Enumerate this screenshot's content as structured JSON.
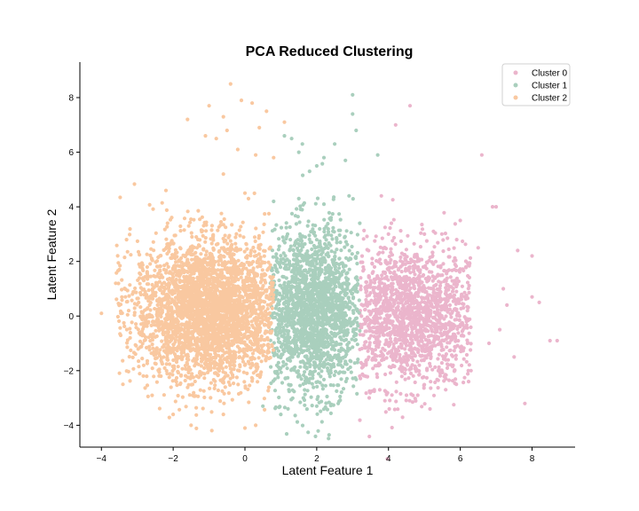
{
  "chart_data": {
    "type": "scatter",
    "title": "PCA Reduced Clustering",
    "xlabel": "Latent Feature 1",
    "ylabel": "Latent Feature 2",
    "xlim": [
      -4.6,
      9.2
    ],
    "ylim": [
      -4.8,
      9.3
    ],
    "xticks": [
      -4,
      -2,
      0,
      2,
      4,
      6,
      8
    ],
    "yticks": [
      -4,
      -2,
      0,
      2,
      4,
      6,
      8
    ],
    "xtick_labels": [
      "−4",
      "−2",
      "0",
      "2",
      "4",
      "6",
      "8"
    ],
    "ytick_labels": [
      "−4",
      "−2",
      "0",
      "2",
      "4",
      "6",
      "8"
    ],
    "grid": false,
    "legend_position": "top-right",
    "series": [
      {
        "name": "Cluster 0",
        "color": "#ebb5cc",
        "points": [
          [
            3.5,
            1.2
          ],
          [
            4.0,
            3.0
          ],
          [
            4.2,
            -1.5
          ],
          [
            4.8,
            2.0
          ],
          [
            5.2,
            -0.5
          ],
          [
            5.5,
            1.5
          ],
          [
            5.8,
            -1.8
          ],
          [
            6.0,
            3.5
          ],
          [
            6.2,
            0.2
          ],
          [
            6.5,
            2.5
          ],
          [
            6.6,
            5.9
          ],
          [
            6.8,
            -1.0
          ],
          [
            7.0,
            4.0
          ],
          [
            7.2,
            1.0
          ],
          [
            7.5,
            -1.5
          ],
          [
            7.8,
            -3.2
          ],
          [
            8.0,
            2.2
          ],
          [
            8.2,
            0.5
          ],
          [
            8.5,
            -0.9
          ],
          [
            8.7,
            -0.9
          ],
          [
            3.8,
            4.4
          ],
          [
            4.5,
            -2.9
          ],
          [
            5.0,
            3.0
          ],
          [
            6.9,
            4.0
          ],
          [
            7.3,
            0.4
          ],
          [
            5.6,
            -2.3
          ],
          [
            4.2,
            7.0
          ],
          [
            4.6,
            7.7
          ],
          [
            7.6,
            2.4
          ],
          [
            3.2,
            -2.2
          ],
          [
            3.6,
            0.5
          ],
          [
            4.9,
            0.0
          ],
          [
            6.3,
            -2.0
          ],
          [
            5.9,
            2.8
          ],
          [
            7.1,
            -0.5
          ],
          [
            8.0,
            0.7
          ],
          [
            3.9,
            -3.1
          ]
        ],
        "cloud": {
          "center": [
            4.6,
            0.0
          ],
          "spread": [
            1.1,
            1.3
          ],
          "xmin": 3.2,
          "xmax": 6.3,
          "count": 1600
        }
      },
      {
        "name": "Cluster 1",
        "color": "#a9cfbd",
        "points": [
          [
            1.1,
            6.6
          ],
          [
            1.3,
            6.5
          ],
          [
            1.6,
            6.3
          ],
          [
            1.8,
            5.3
          ],
          [
            2.0,
            5.5
          ],
          [
            2.2,
            5.8
          ],
          [
            2.5,
            6.3
          ],
          [
            2.8,
            5.7
          ],
          [
            3.0,
            8.1
          ],
          [
            3.0,
            7.4
          ],
          [
            3.1,
            6.8
          ],
          [
            3.7,
            5.9
          ],
          [
            2.9,
            4.4
          ],
          [
            1.5,
            4.3
          ],
          [
            2.4,
            3.6
          ],
          [
            1.0,
            -3.6
          ],
          [
            1.2,
            -3.4
          ],
          [
            0.5,
            -3.3
          ],
          [
            2.0,
            -3.3
          ],
          [
            2.6,
            -3.2
          ],
          [
            1.5,
            6.0
          ],
          [
            0.8,
            4.2
          ],
          [
            3.2,
            3.4
          ],
          [
            2.2,
            4.1
          ]
        ],
        "cloud": {
          "center": [
            1.9,
            0.2
          ],
          "spread": [
            0.7,
            1.5
          ],
          "xmin": 0.7,
          "xmax": 3.2,
          "count": 1900
        }
      },
      {
        "name": "Cluster 2",
        "color": "#f9c8a0",
        "points": [
          [
            -0.4,
            8.5
          ],
          [
            -0.1,
            7.9
          ],
          [
            -0.6,
            7.3
          ],
          [
            -1.0,
            7.7
          ],
          [
            0.2,
            7.8
          ],
          [
            0.6,
            7.5
          ],
          [
            1.1,
            7.1
          ],
          [
            -1.6,
            7.2
          ],
          [
            -0.8,
            6.5
          ],
          [
            0.4,
            6.9
          ],
          [
            -0.2,
            6.1
          ],
          [
            0.3,
            5.9
          ],
          [
            -0.6,
            5.2
          ],
          [
            -2.2,
            4.6
          ],
          [
            0.0,
            4.5
          ],
          [
            0.8,
            5.8
          ],
          [
            -0.5,
            6.8
          ],
          [
            -4.0,
            0.1
          ],
          [
            -3.4,
            -2.5
          ],
          [
            -1.5,
            -4.0
          ],
          [
            0.0,
            -4.1
          ],
          [
            -0.6,
            -3.6
          ],
          [
            0.3,
            -4.0
          ],
          [
            -3.5,
            1.7
          ],
          [
            -3.3,
            2.8
          ],
          [
            -2.0,
            -3.6
          ],
          [
            -1.1,
            6.6
          ],
          [
            0.1,
            4.3
          ],
          [
            -3.2,
            -0.8
          ],
          [
            -3.6,
            1.2
          ]
        ],
        "cloud": {
          "center": [
            -1.0,
            0.2
          ],
          "spread": [
            1.05,
            1.3
          ],
          "xmin": -3.6,
          "xmax": 0.8,
          "count": 3200
        }
      }
    ]
  }
}
